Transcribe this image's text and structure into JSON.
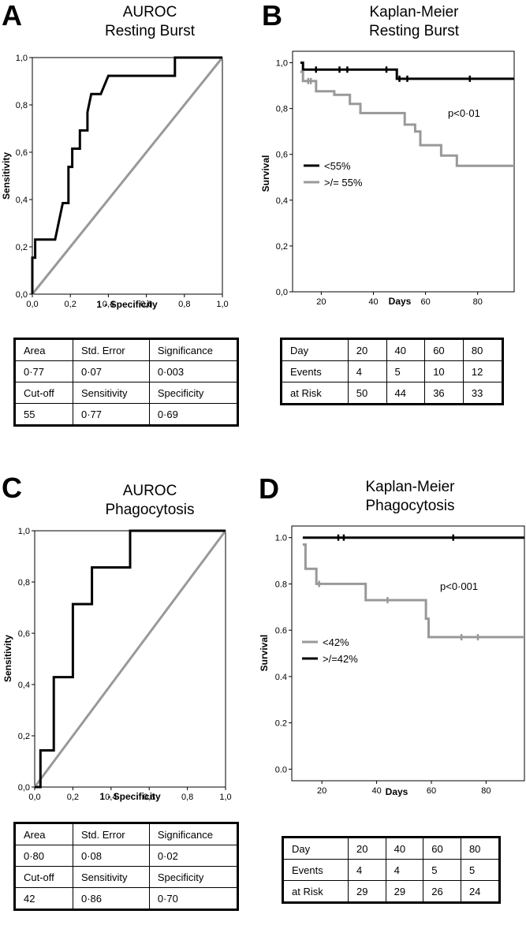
{
  "panels": {
    "A": {
      "letter": "A",
      "title_line1": "AUROC",
      "title_line2": "Resting Burst",
      "xlabel": "1 - Specificity",
      "ylabel": "Sensitivity",
      "xticks": [
        "0,0",
        "0,2",
        "0,4",
        "0,6",
        "0,8",
        "1,0"
      ],
      "yticks": [
        "0,0",
        "0,2",
        "0,4",
        "0,6",
        "0,8",
        "1,0"
      ],
      "table": [
        [
          "Area",
          "Std. Error",
          "Significance"
        ],
        [
          "0·77",
          "0·07",
          "0·003"
        ],
        [
          "Cut-off",
          "Sensitivity",
          "Specificity"
        ],
        [
          "55",
          "0·77",
          "0·69"
        ]
      ]
    },
    "B": {
      "letter": "B",
      "title_line1": "Kaplan-Meier",
      "title_line2": "Resting Burst",
      "xlabel": "Days",
      "ylabel": "Survival",
      "annotation": "p<0·01",
      "legend1": "<55%",
      "legend2": ">/= 55%",
      "xticks": [
        "20",
        "40",
        "60",
        "80"
      ],
      "yticks": [
        "0,0",
        "0,2",
        "0,4",
        "0,6",
        "0,8",
        "1,0"
      ],
      "table": [
        [
          "Day",
          "20",
          "40",
          "60",
          "80"
        ],
        [
          "Events",
          "4",
          "5",
          "10",
          "12"
        ],
        [
          "at Risk",
          "50",
          "44",
          "36",
          "33"
        ]
      ]
    },
    "C": {
      "letter": "C",
      "title_line1": "AUROC",
      "title_line2": "Phagocytosis",
      "xlabel": "1 - Specificity",
      "ylabel": "Sensitivity",
      "xticks": [
        "0,0",
        "0,2",
        "0,4",
        "0,6",
        "0,8",
        "1,0"
      ],
      "yticks": [
        "0,0",
        "0,2",
        "0,4",
        "0,6",
        "0,8",
        "1,0"
      ],
      "table": [
        [
          "Area",
          "Std. Error",
          "Significance"
        ],
        [
          "0·80",
          "0·08",
          "0·02"
        ],
        [
          "Cut-off",
          "Sensitivity",
          "Specificity"
        ],
        [
          "42",
          "0·86",
          "0·70"
        ]
      ]
    },
    "D": {
      "letter": "D",
      "title_line1": "Kaplan-Meier",
      "title_line2": "Phagocytosis",
      "xlabel": "Days",
      "ylabel": "Survival",
      "annotation": "p<0·001",
      "legend1": "<42%",
      "legend2": ">/=42%",
      "xticks": [
        "20",
        "40",
        "60",
        "80"
      ],
      "yticks": [
        "0.0",
        "0.2",
        "0.4",
        "0.6",
        "0.8",
        "1.0"
      ],
      "table": [
        [
          "Day",
          "20",
          "40",
          "60",
          "80"
        ],
        [
          "Events",
          "4",
          "4",
          "5",
          "5"
        ],
        [
          "at Risk",
          "29",
          "29",
          "26",
          "24"
        ]
      ]
    }
  },
  "chart_data": [
    {
      "type": "line",
      "panel": "A",
      "title": "AUROC Resting Burst",
      "xlabel": "1 - Specificity",
      "ylabel": "Sensitivity",
      "xlim": [
        0,
        1
      ],
      "ylim": [
        0,
        1
      ],
      "colors": {
        "roc": "#000000",
        "reference": "#999999"
      },
      "series": [
        {
          "values": [
            [
              0,
              0
            ],
            [
              0,
              0.154
            ],
            [
              0.015,
              0.154
            ],
            [
              0.015,
              0.231
            ],
            [
              0.12,
              0.231
            ],
            [
              0.16,
              0.385
            ],
            [
              0.19,
              0.385
            ],
            [
              0.19,
              0.538
            ],
            [
              0.21,
              0.538
            ],
            [
              0.21,
              0.615
            ],
            [
              0.25,
              0.615
            ],
            [
              0.25,
              0.692
            ],
            [
              0.29,
              0.692
            ],
            [
              0.29,
              0.769
            ],
            [
              0.31,
              0.846
            ],
            [
              0.36,
              0.846
            ],
            [
              0.4,
              0.923
            ],
            [
              0.75,
              0.923
            ],
            [
              0.75,
              1
            ],
            [
              1,
              1
            ]
          ]
        },
        {
          "values": [
            [
              0,
              0
            ],
            [
              1,
              1
            ]
          ]
        }
      ]
    },
    {
      "type": "line",
      "panel": "B",
      "title": "Kaplan-Meier Resting Burst",
      "xlabel": "Days",
      "ylabel": "Survival",
      "xlim": [
        9,
        94
      ],
      "ylim": [
        0,
        1.05
      ],
      "colors": {
        "<55%": "#000000",
        ">/= 55%": "#999999"
      },
      "series": [
        {
          "name": "<55%",
          "values": [
            [
              12,
              1.0
            ],
            [
              13,
              1.0
            ],
            [
              13,
              0.97
            ],
            [
              46,
              0.97
            ],
            [
              49,
              0.97
            ],
            [
              49,
              0.93
            ],
            [
              94,
              0.93
            ]
          ],
          "censored": [
            [
              18,
              0.97
            ],
            [
              27,
              0.97
            ],
            [
              30,
              0.97
            ],
            [
              45,
              0.97
            ],
            [
              50,
              0.93
            ],
            [
              53,
              0.93
            ],
            [
              77,
              0.93
            ]
          ]
        },
        {
          "name": ">/= 55%",
          "values": [
            [
              12,
              0.96
            ],
            [
              13,
              0.96
            ],
            [
              13,
              0.92
            ],
            [
              18,
              0.92
            ],
            [
              18,
              0.875
            ],
            [
              25,
              0.875
            ],
            [
              25,
              0.86
            ],
            [
              31,
              0.86
            ],
            [
              31,
              0.82
            ],
            [
              35,
              0.82
            ],
            [
              35,
              0.78
            ],
            [
              52,
              0.78
            ],
            [
              52,
              0.73
            ],
            [
              56,
              0.73
            ],
            [
              56,
              0.7
            ],
            [
              58,
              0.7
            ],
            [
              58,
              0.64
            ],
            [
              66,
              0.64
            ],
            [
              66,
              0.595
            ],
            [
              72,
              0.595
            ],
            [
              72,
              0.55
            ],
            [
              94,
              0.55
            ]
          ],
          "censored": [
            [
              15,
              0.92
            ],
            [
              16,
              0.92
            ]
          ]
        }
      ]
    },
    {
      "type": "line",
      "panel": "C",
      "title": "AUROC Phagocytosis",
      "xlabel": "1 - Specificity",
      "ylabel": "Sensitivity",
      "xlim": [
        0,
        1
      ],
      "ylim": [
        0,
        1
      ],
      "colors": {
        "roc": "#000000",
        "reference": "#999999"
      },
      "series": [
        {
          "values": [
            [
              0,
              0
            ],
            [
              0.03,
              0
            ],
            [
              0.03,
              0.143
            ],
            [
              0.1,
              0.143
            ],
            [
              0.1,
              0.429
            ],
            [
              0.2,
              0.429
            ],
            [
              0.2,
              0.714
            ],
            [
              0.3,
              0.714
            ],
            [
              0.3,
              0.857
            ],
            [
              0.5,
              0.857
            ],
            [
              0.5,
              1
            ],
            [
              1,
              1
            ]
          ]
        },
        {
          "values": [
            [
              0,
              0
            ],
            [
              1,
              1
            ]
          ]
        }
      ]
    },
    {
      "type": "line",
      "panel": "D",
      "title": "Kaplan-Meier Phagocytosis",
      "xlabel": "Days",
      "ylabel": "Survival",
      "xlim": [
        9,
        94
      ],
      "ylim": [
        -0.05,
        1.05
      ],
      "colors": {
        "<42%": "#999999",
        ">/=42%": "#000000"
      },
      "series": [
        {
          "name": "<42%",
          "values": [
            [
              13,
              0.97
            ],
            [
              14,
              0.97
            ],
            [
              14,
              0.865
            ],
            [
              18,
              0.865
            ],
            [
              18,
              0.8
            ],
            [
              36,
              0.8
            ],
            [
              36,
              0.73
            ],
            [
              58,
              0.73
            ],
            [
              58,
              0.65
            ],
            [
              59,
              0.65
            ],
            [
              59,
              0.57
            ],
            [
              94,
              0.57
            ]
          ],
          "censored": [
            [
              19,
              0.8
            ],
            [
              44,
              0.73
            ],
            [
              71,
              0.57
            ],
            [
              77,
              0.57
            ]
          ]
        },
        {
          "name": ">/=42%",
          "values": [
            [
              13,
              1.0
            ],
            [
              94,
              1.0
            ]
          ],
          "censored": [
            [
              26,
              1.0
            ],
            [
              28,
              1.0
            ],
            [
              68,
              1.0
            ]
          ]
        }
      ]
    }
  ]
}
